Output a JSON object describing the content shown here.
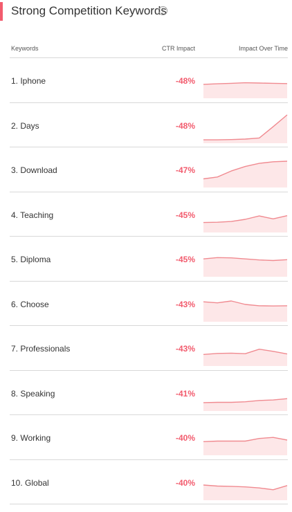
{
  "header": {
    "title": "Strong Competition Keywords",
    "help_icon": "question-circle-icon",
    "accent_color": "#f25c6e"
  },
  "table": {
    "columns": {
      "keyword": "Keywords",
      "ctr": "CTR Impact",
      "time": "Impact Over Time"
    },
    "rows": [
      {
        "keyword": "1. Iphone",
        "ctr": "-48%",
        "trend": [
          0.45,
          0.47,
          0.49,
          0.51,
          0.5,
          0.49,
          0.48
        ]
      },
      {
        "keyword": "2. Days",
        "ctr": "-48%",
        "trend": [
          0.05,
          0.05,
          0.06,
          0.08,
          0.12,
          0.55,
          1.0
        ]
      },
      {
        "keyword": "3. Download",
        "ctr": "-47%",
        "trend": [
          0.25,
          0.32,
          0.55,
          0.72,
          0.84,
          0.9,
          0.92
        ]
      },
      {
        "keyword": "4. Teaching",
        "ctr": "-45%",
        "trend": [
          0.3,
          0.31,
          0.34,
          0.42,
          0.55,
          0.44,
          0.56
        ]
      },
      {
        "keyword": "5. Diploma",
        "ctr": "-45%",
        "trend": [
          0.6,
          0.65,
          0.64,
          0.6,
          0.56,
          0.54,
          0.57
        ]
      },
      {
        "keyword": "6. Choose",
        "ctr": "-43%",
        "trend": [
          0.68,
          0.64,
          0.71,
          0.58,
          0.53,
          0.52,
          0.53
        ]
      },
      {
        "keyword": "7. Professionals",
        "ctr": "-43%",
        "trend": [
          0.36,
          0.4,
          0.41,
          0.39,
          0.56,
          0.48,
          0.38
        ]
      },
      {
        "keyword": "8. Speaking",
        "ctr": "-41%",
        "trend": [
          0.24,
          0.25,
          0.25,
          0.27,
          0.32,
          0.34,
          0.39
        ]
      },
      {
        "keyword": "9. Working",
        "ctr": "-40%",
        "trend": [
          0.44,
          0.46,
          0.46,
          0.46,
          0.56,
          0.6,
          0.5
        ]
      },
      {
        "keyword": "10. Global",
        "ctr": "-40%",
        "trend": [
          0.5,
          0.46,
          0.45,
          0.43,
          0.39,
          0.32,
          0.48
        ]
      }
    ]
  },
  "colors": {
    "negative_value": "#f25c6e",
    "spark_line": "#f08a90",
    "spark_fill": "#fde7e8",
    "divider": "#d8d8d8",
    "text": "#333333"
  }
}
